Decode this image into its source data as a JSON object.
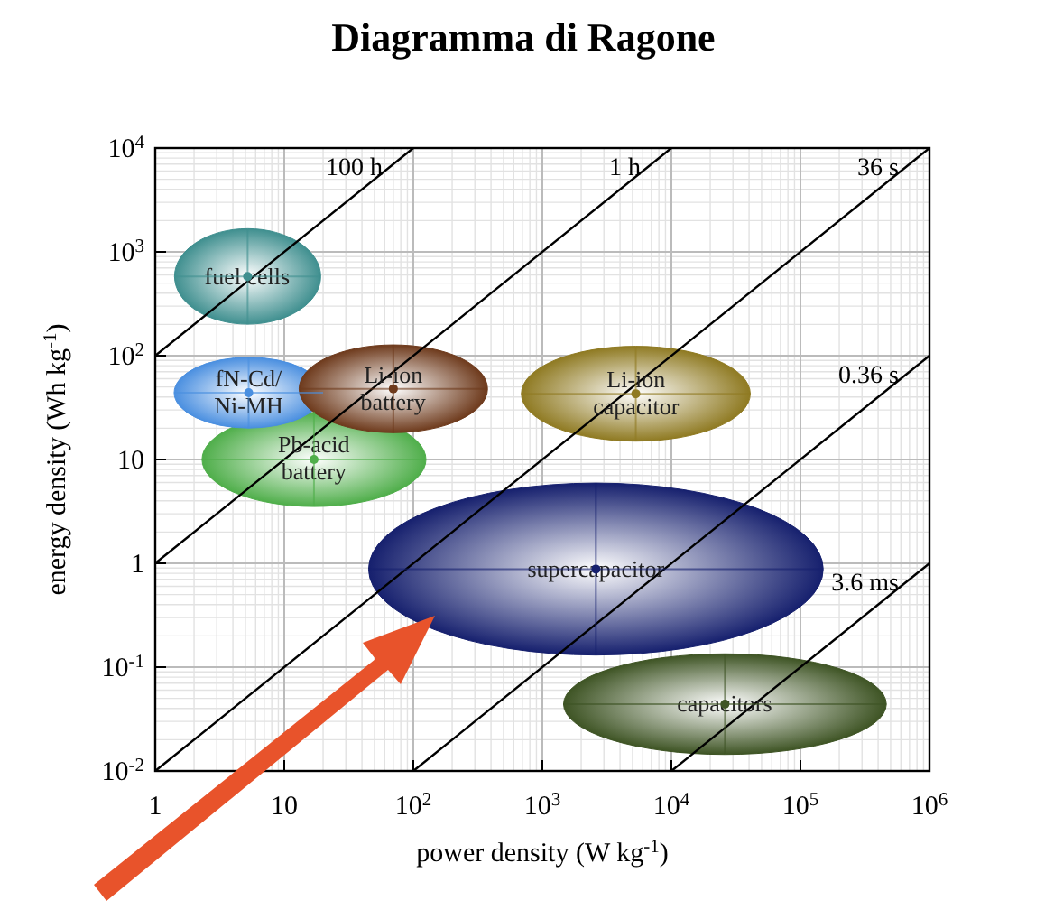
{
  "chart_data": {
    "type": "scatter",
    "title": "Diagramma di Ragone",
    "xlabel": "power density (W kg$^{-1}$)",
    "ylabel": "energy density (Wh kg$^{-1}$)",
    "log": "xy",
    "grid": true,
    "xlim": [
      1,
      1000000
    ],
    "ylim": [
      0.01,
      10000
    ],
    "xticks": [
      1,
      10,
      {
        "value": 100,
        "label": "10$^{2}$"
      },
      {
        "value": 1000,
        "label": "10$^{3}$"
      },
      {
        "value": 10000,
        "label": "10$^{4}$"
      },
      {
        "value": 100000,
        "label": "10$^{5}$"
      },
      {
        "value": 1000000,
        "label": "10$^{6}$"
      }
    ],
    "yticks": [
      {
        "value": 0.01,
        "label": "10$^{-2}$"
      },
      {
        "value": 0.1,
        "label": "10$^{-1}$"
      },
      1,
      10,
      {
        "value": 100,
        "label": "10$^{2}$"
      },
      {
        "value": 1000,
        "label": "10$^{3}$"
      },
      {
        "value": 10000,
        "label": "10$^{4}$"
      }
    ],
    "series": [
      {
        "name": "fuel cells",
        "color": "#3f8f8f",
        "x": [
          5.2
        ],
        "values": [
          580
        ],
        "xerrors": [
          [
            1.4,
            19
          ]
        ],
        "errors": [
          [
            200,
            1660
          ]
        ]
      },
      {
        "name": "Pb-acid\nbattery",
        "color": "#4fae4a",
        "x": [
          17
        ],
        "values": [
          10
        ],
        "xerrors": [
          [
            2.3,
            125
          ]
        ],
        "errors": [
          [
            3.6,
            29
          ]
        ]
      },
      {
        "name": "fN-Cd/\nNi-MH",
        "color": "#4a8fe0",
        "x": [
          5.3
        ],
        "values": [
          44
        ],
        "xerrors": [
          [
            1.4,
            20
          ]
        ],
        "errors": [
          [
            20,
            96
          ]
        ]
      },
      {
        "name": "Li-ion\nbattery",
        "color": "#6e3a1c",
        "x": [
          70
        ],
        "values": [
          48
        ],
        "xerrors": [
          [
            13,
            375
          ]
        ],
        "errors": [
          [
            18,
            126
          ]
        ]
      },
      {
        "name": "Li-ion\ncapacitor",
        "color": "#8f7a22",
        "x": [
          5300
        ],
        "values": [
          43
        ],
        "xerrors": [
          [
            690,
            41000
          ]
        ],
        "errors": [
          [
            15,
            123
          ]
        ]
      },
      {
        "name": "supercapacitor",
        "color": "#16206e",
        "x": [
          2600
        ],
        "values": [
          0.88
        ],
        "xerrors": [
          [
            45,
            150000
          ]
        ],
        "errors": [
          [
            0.13,
            5.9
          ]
        ]
      },
      {
        "name": "capacitors",
        "color": "#3e5424",
        "x": [
          26000
        ],
        "values": [
          0.044
        ],
        "xerrors": [
          [
            1450,
            460000
          ]
        ],
        "errors": [
          [
            0.0145,
            0.135
          ]
        ]
      },
      {
        "name": "100 h",
        "type": "line",
        "color": "#000000",
        "x": [
          1,
          100
        ],
        "values": [
          100,
          10000
        ]
      },
      {
        "name": "1 h",
        "type": "line",
        "color": "#000000",
        "x": [
          1,
          10000
        ],
        "values": [
          1,
          10000
        ]
      },
      {
        "name": "36 s",
        "type": "line",
        "color": "#000000",
        "x": [
          1,
          1000000
        ],
        "values": [
          0.01,
          10000
        ]
      },
      {
        "name": "0.36 s",
        "type": "line",
        "color": "#000000",
        "x": [
          100,
          1000000
        ],
        "values": [
          0.01,
          100
        ]
      },
      {
        "name": "3.6 ms",
        "type": "line",
        "color": "#000000",
        "x": [
          10000,
          1000000
        ],
        "values": [
          0.01,
          1
        ]
      }
    ]
  }
}
